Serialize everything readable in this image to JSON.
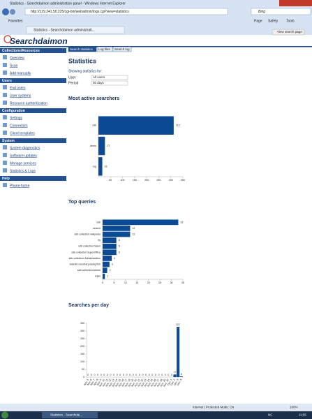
{
  "window": {
    "title": "Statistics - Searchdaimon administration panel - Windows Internet Explorer",
    "address": "http://129.241.50.225/cgi-bin/webadmin/logs.cgi?view=statistics",
    "search_box": "Bing",
    "favorites": "Favorites",
    "tab": "Statistics - Searchdaimon administrati...",
    "toolbar": [
      "Page",
      "Safety",
      "Tools"
    ]
  },
  "header": {
    "logo": "Searchdaimon",
    "view_button": "View search page"
  },
  "sidebar": [
    {
      "title": "Collections/Resources",
      "items": [
        "Overview",
        "Scan",
        "Add manually"
      ]
    },
    {
      "title": "Users",
      "items": [
        "End users",
        "User systems",
        "Resource authentication"
      ]
    },
    {
      "title": "Configuration",
      "items": [
        "Settings",
        "Connectors",
        "Client templates"
      ]
    },
    {
      "title": "System",
      "items": [
        "System diagnostics",
        "Software updates",
        "Manage services",
        "Statistics & Logs"
      ]
    },
    {
      "title": "Help",
      "items": [
        "Phone home"
      ]
    }
  ],
  "tabs": [
    "Search statistics",
    "Log files",
    "Search log"
  ],
  "heading": "Statistics",
  "filter": {
    "caption": "Showing statistics for:",
    "user_label": "User",
    "user_value": "All users",
    "period_label": "Period",
    "period_value": "30 days"
  },
  "chart_data": [
    {
      "type": "bar",
      "orientation": "horizontal",
      "title": "Most active searchers",
      "color": "#0b4a94",
      "categories": [
        "sdb",
        "demo",
        "rug"
      ],
      "values": [
        312,
        27,
        16
      ],
      "xlim": [
        0,
        350
      ],
      "xticks": [
        50,
        100,
        150,
        200,
        250,
        300,
        350
      ]
    },
    {
      "type": "bar",
      "orientation": "horizontal",
      "title": "Top queries",
      "color": "#0b4a94",
      "categories": [
        "sdb",
        "search",
        "sdb collection:wikipedia",
        "fly",
        "sdb collection:Sales",
        "sdb collection:SuperOffice",
        "sdb collection:Administration",
        "statoil& nessfrat jessing fish",
        "sdb collection:sdweb",
        "sqws"
      ],
      "values": [
        33,
        12,
        12,
        6,
        6,
        6,
        4,
        3,
        2,
        1
      ],
      "xlim": [
        0,
        35
      ],
      "xticks": [
        0,
        5,
        10,
        15,
        20,
        25,
        30,
        35
      ]
    },
    {
      "type": "bar",
      "orientation": "vertical",
      "title": "Searches per day",
      "color": "#0b4a94",
      "categories": [
        "Nov. 5",
        "Nov. 6",
        "Nov. 7",
        "Nov. 8",
        "Nov. 9",
        "Nov. 10",
        "Nov. 11",
        "Nov. 12",
        "Nov. 13",
        "Nov. 14",
        "Nov. 15",
        "Nov. 16",
        "Nov. 17",
        "Nov. 18",
        "Nov. 19",
        "Nov. 20",
        "Nov. 21",
        "Nov. 22",
        "Nov. 23",
        "Nov. 24",
        "Nov. 25",
        "Nov. 26",
        "Nov. 27",
        "Nov. 28",
        "Nov. 29",
        "Nov. 30",
        "Dec. 1",
        "Dec. 2",
        "Dec. 3",
        "Dec. 4"
      ],
      "values": [
        0,
        0,
        0,
        0,
        0,
        0,
        0,
        0,
        0,
        0,
        0,
        0,
        0,
        0,
        0,
        0,
        0,
        0,
        0,
        0,
        0,
        0,
        0,
        0,
        0,
        0,
        0,
        17,
        327,
        5
      ],
      "ylim": [
        0,
        350
      ],
      "yticks": [
        0,
        50,
        100,
        150,
        200,
        250,
        300,
        350
      ]
    }
  ],
  "status": {
    "zone": "Internet | Protected Mode: On",
    "zoom": "100%"
  },
  "taskbar": {
    "window": "Statistics - Searchdai...",
    "lang": "NC",
    "clock": "11:55"
  }
}
